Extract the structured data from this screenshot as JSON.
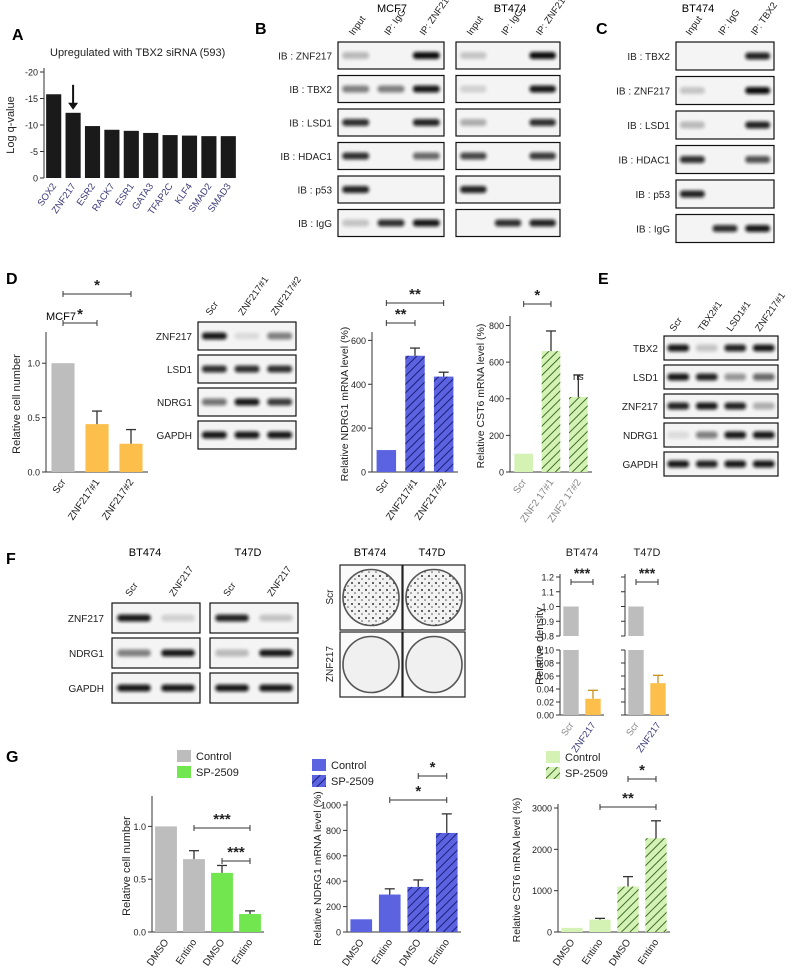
{
  "colors": {
    "black_bar": "#1a1a1a",
    "grey_bar": "#bdbdbd",
    "orange": "#fdbf4b",
    "blue": "#5b63e0",
    "light_green": "#d5f2b5",
    "green": "#71e64f",
    "band": "#1c1c1c",
    "blot_bg": "#f2f2f2"
  },
  "panels": {
    "A": "A",
    "B": "B",
    "C": "C",
    "D": "D",
    "E": "E",
    "F": "F",
    "G": "G"
  },
  "B": {
    "cell_mcf7": "MCF7",
    "cell_bt474": "BT474",
    "lanes": [
      "Input",
      "IP: IgG",
      "IP: ZNF217"
    ],
    "rows": [
      "IB : ZNF217",
      "IB : TBX2",
      "IB : LSD1",
      "IB : HDAC1",
      "IB : p53",
      "IB : IgG"
    ]
  },
  "C": {
    "cell": "BT474",
    "lanes": [
      "Input",
      "IP: IgG",
      "IP: TBX2"
    ],
    "rows": [
      "IB : TBX2",
      "IB : ZNF217",
      "IB : LSD1",
      "IB : HDAC1",
      "IB : p53",
      "IB : IgG"
    ]
  },
  "D": {
    "cell": "MCF7",
    "blot_lanes": [
      "Scr",
      "ZNF217#1",
      "ZNF217#2"
    ],
    "blot_rows": [
      "ZNF217",
      "LSD1",
      "NDRG1",
      "GAPDH"
    ]
  },
  "E": {
    "lanes": [
      "Scr",
      "TBX2#1",
      "LSD1#1",
      "ZNF217#1"
    ],
    "rows": [
      "TBX2",
      "LSD1",
      "ZNF217",
      "NDRG1",
      "GAPDH"
    ]
  },
  "F": {
    "cell_bt474": "BT474",
    "cell_t47d": "T47D",
    "lanes": [
      "Scr",
      "ZNF217"
    ],
    "rows": [
      "ZNF217",
      "NDRG1",
      "GAPDH"
    ],
    "colony_rows": [
      "Scr",
      "ZNF217"
    ]
  },
  "chart_data": [
    {
      "id": "A",
      "type": "bar",
      "title": "Upregulated with TBX2 siRNA (593)",
      "ylabel": "Log q-value",
      "categories": [
        "SOX2",
        "ZNF217",
        "ESR2",
        "RACK7",
        "ESR1",
        "GATA3",
        "TFAP2C",
        "KLF4",
        "SMAD2",
        "SMAD3"
      ],
      "values": [
        -15.8,
        -12.3,
        -9.8,
        -9.1,
        -8.9,
        -8.5,
        -8.1,
        -8.0,
        -7.9,
        -7.9
      ],
      "ylim": [
        0,
        -20
      ],
      "yticks": [
        "0",
        "-5",
        "-10",
        "-15",
        "-20"
      ],
      "annotation": "arrow on ZNF217"
    },
    {
      "id": "D1",
      "type": "bar",
      "ylabel": "Relative cell number",
      "categories": [
        "Scr",
        "ZNF217#1",
        "ZNF217#2"
      ],
      "values": [
        1.0,
        0.44,
        0.26
      ],
      "errors": [
        0,
        0.12,
        0.13
      ],
      "ylim": [
        0,
        1.25
      ],
      "yticks": [
        "0.0",
        "0.5",
        "1.0"
      ],
      "significance": [
        "*",
        "*"
      ]
    },
    {
      "id": "D2",
      "type": "bar",
      "ylabel": "Relative NDRG1 mRNA level (%)",
      "categories": [
        "Scr",
        "ZNF217#1",
        "ZNF217#2"
      ],
      "values": [
        100,
        530,
        435
      ],
      "errors": [
        0,
        35,
        20
      ],
      "ylim": [
        0,
        620
      ],
      "yticks": [
        "0",
        "200",
        "400",
        "600"
      ],
      "significance": [
        "**",
        "**"
      ]
    },
    {
      "id": "D3",
      "type": "bar",
      "ylabel": "Relative CST6 mRNA level (%)",
      "categories": [
        "Scr",
        "ZNF2 17#1",
        "ZNF2 17#2"
      ],
      "values": [
        100,
        660,
        410
      ],
      "errors": [
        0,
        110,
        120
      ],
      "ylim": [
        0,
        830
      ],
      "yticks": [
        "0",
        "200",
        "400",
        "600",
        "800"
      ],
      "significance": [
        "*",
        "ns"
      ]
    },
    {
      "id": "F1",
      "type": "bar",
      "title": "BT474",
      "ylabel": "Relative density",
      "categories": [
        "Scr",
        "ZNF217"
      ],
      "values": [
        1.0,
        0.025
      ],
      "errors": [
        0,
        0.013
      ],
      "yticks_upper": [
        "0.8",
        "0.9",
        "1.0",
        "1.1",
        "1.2"
      ],
      "yticks_lower": [
        "0.00",
        "0.02",
        "0.04",
        "0.06",
        "0.08",
        "0.10"
      ],
      "axis_break": true,
      "significance": [
        "***"
      ]
    },
    {
      "id": "F2",
      "type": "bar",
      "title": "T47D",
      "categories": [
        "Scr",
        "ZNF217"
      ],
      "values": [
        1.0,
        0.049
      ],
      "errors": [
        0,
        0.012
      ],
      "axis_break": true,
      "significance": [
        "***"
      ]
    },
    {
      "id": "G1",
      "type": "bar",
      "ylabel": "Relative cell number",
      "legend": [
        "Control",
        "SP-2509"
      ],
      "categories": [
        "DMSO",
        "Entino",
        "DMSO",
        "Entino"
      ],
      "values": [
        1.0,
        0.69,
        0.56,
        0.17
      ],
      "errors": [
        0,
        0.08,
        0.07,
        0.03
      ],
      "ylim": [
        0,
        1.25
      ],
      "yticks": [
        "0.0",
        "0.5",
        "1.0"
      ],
      "significance": [
        "***",
        "***"
      ]
    },
    {
      "id": "G2",
      "type": "bar",
      "ylabel": "Relative NDRG1 mRNA level (%)",
      "legend": [
        "Control",
        "SP-2509"
      ],
      "categories": [
        "DMSO",
        "Entino",
        "DMSO",
        "Entino"
      ],
      "values": [
        100,
        295,
        355,
        780
      ],
      "errors": [
        0,
        45,
        55,
        150
      ],
      "ylim": [
        0,
        1000
      ],
      "yticks": [
        "0",
        "200",
        "400",
        "600",
        "800",
        "1000"
      ],
      "significance": [
        "*",
        "*"
      ]
    },
    {
      "id": "G3",
      "type": "bar",
      "ylabel": "Relative CST6 mRNA level (%)",
      "legend": [
        "Control",
        "SP-2509"
      ],
      "categories": [
        "DMSO",
        "Entino",
        "DMSO",
        "Entino"
      ],
      "values": [
        100,
        300,
        1100,
        2270
      ],
      "errors": [
        0,
        30,
        240,
        420
      ],
      "ylim": [
        0,
        3000
      ],
      "yticks": [
        "0",
        "1000",
        "2000",
        "3000"
      ],
      "significance": [
        "*",
        "**"
      ]
    }
  ]
}
